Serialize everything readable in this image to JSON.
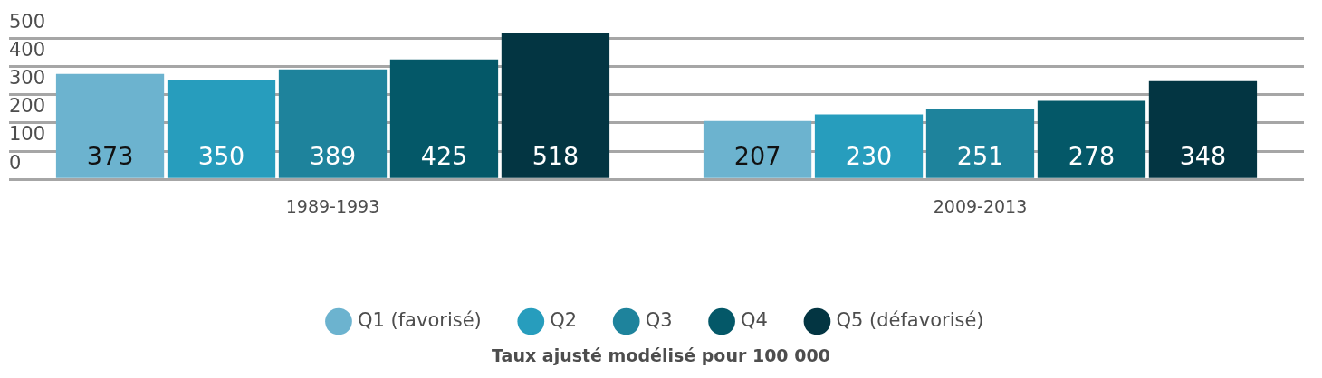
{
  "chart_data": {
    "type": "bar",
    "annotations": [
      "Taux ajusté modélisé pour 100 000"
    ],
    "categories": [
      "1989-1993",
      "2009-2013"
    ],
    "series": [
      {
        "name": "Q1 (favorisé)",
        "color": "#6cb3cf",
        "values": [
          373,
          207
        ]
      },
      {
        "name": "Q2",
        "color": "#279dbd",
        "values": [
          350,
          230
        ]
      },
      {
        "name": "Q3",
        "color": "#1e839c",
        "values": [
          389,
          251
        ]
      },
      {
        "name": "Q4",
        "color": "#045868",
        "values": [
          425,
          278
        ]
      },
      {
        "name": "Q5 (défavorisé)",
        "color": "#033542",
        "values": [
          518,
          348
        ]
      }
    ],
    "ylim": [
      0,
      520
    ],
    "yticks": [
      0,
      100,
      200,
      300,
      400,
      500
    ],
    "grid": "y",
    "legend": "bottom",
    "data_labels": true
  }
}
